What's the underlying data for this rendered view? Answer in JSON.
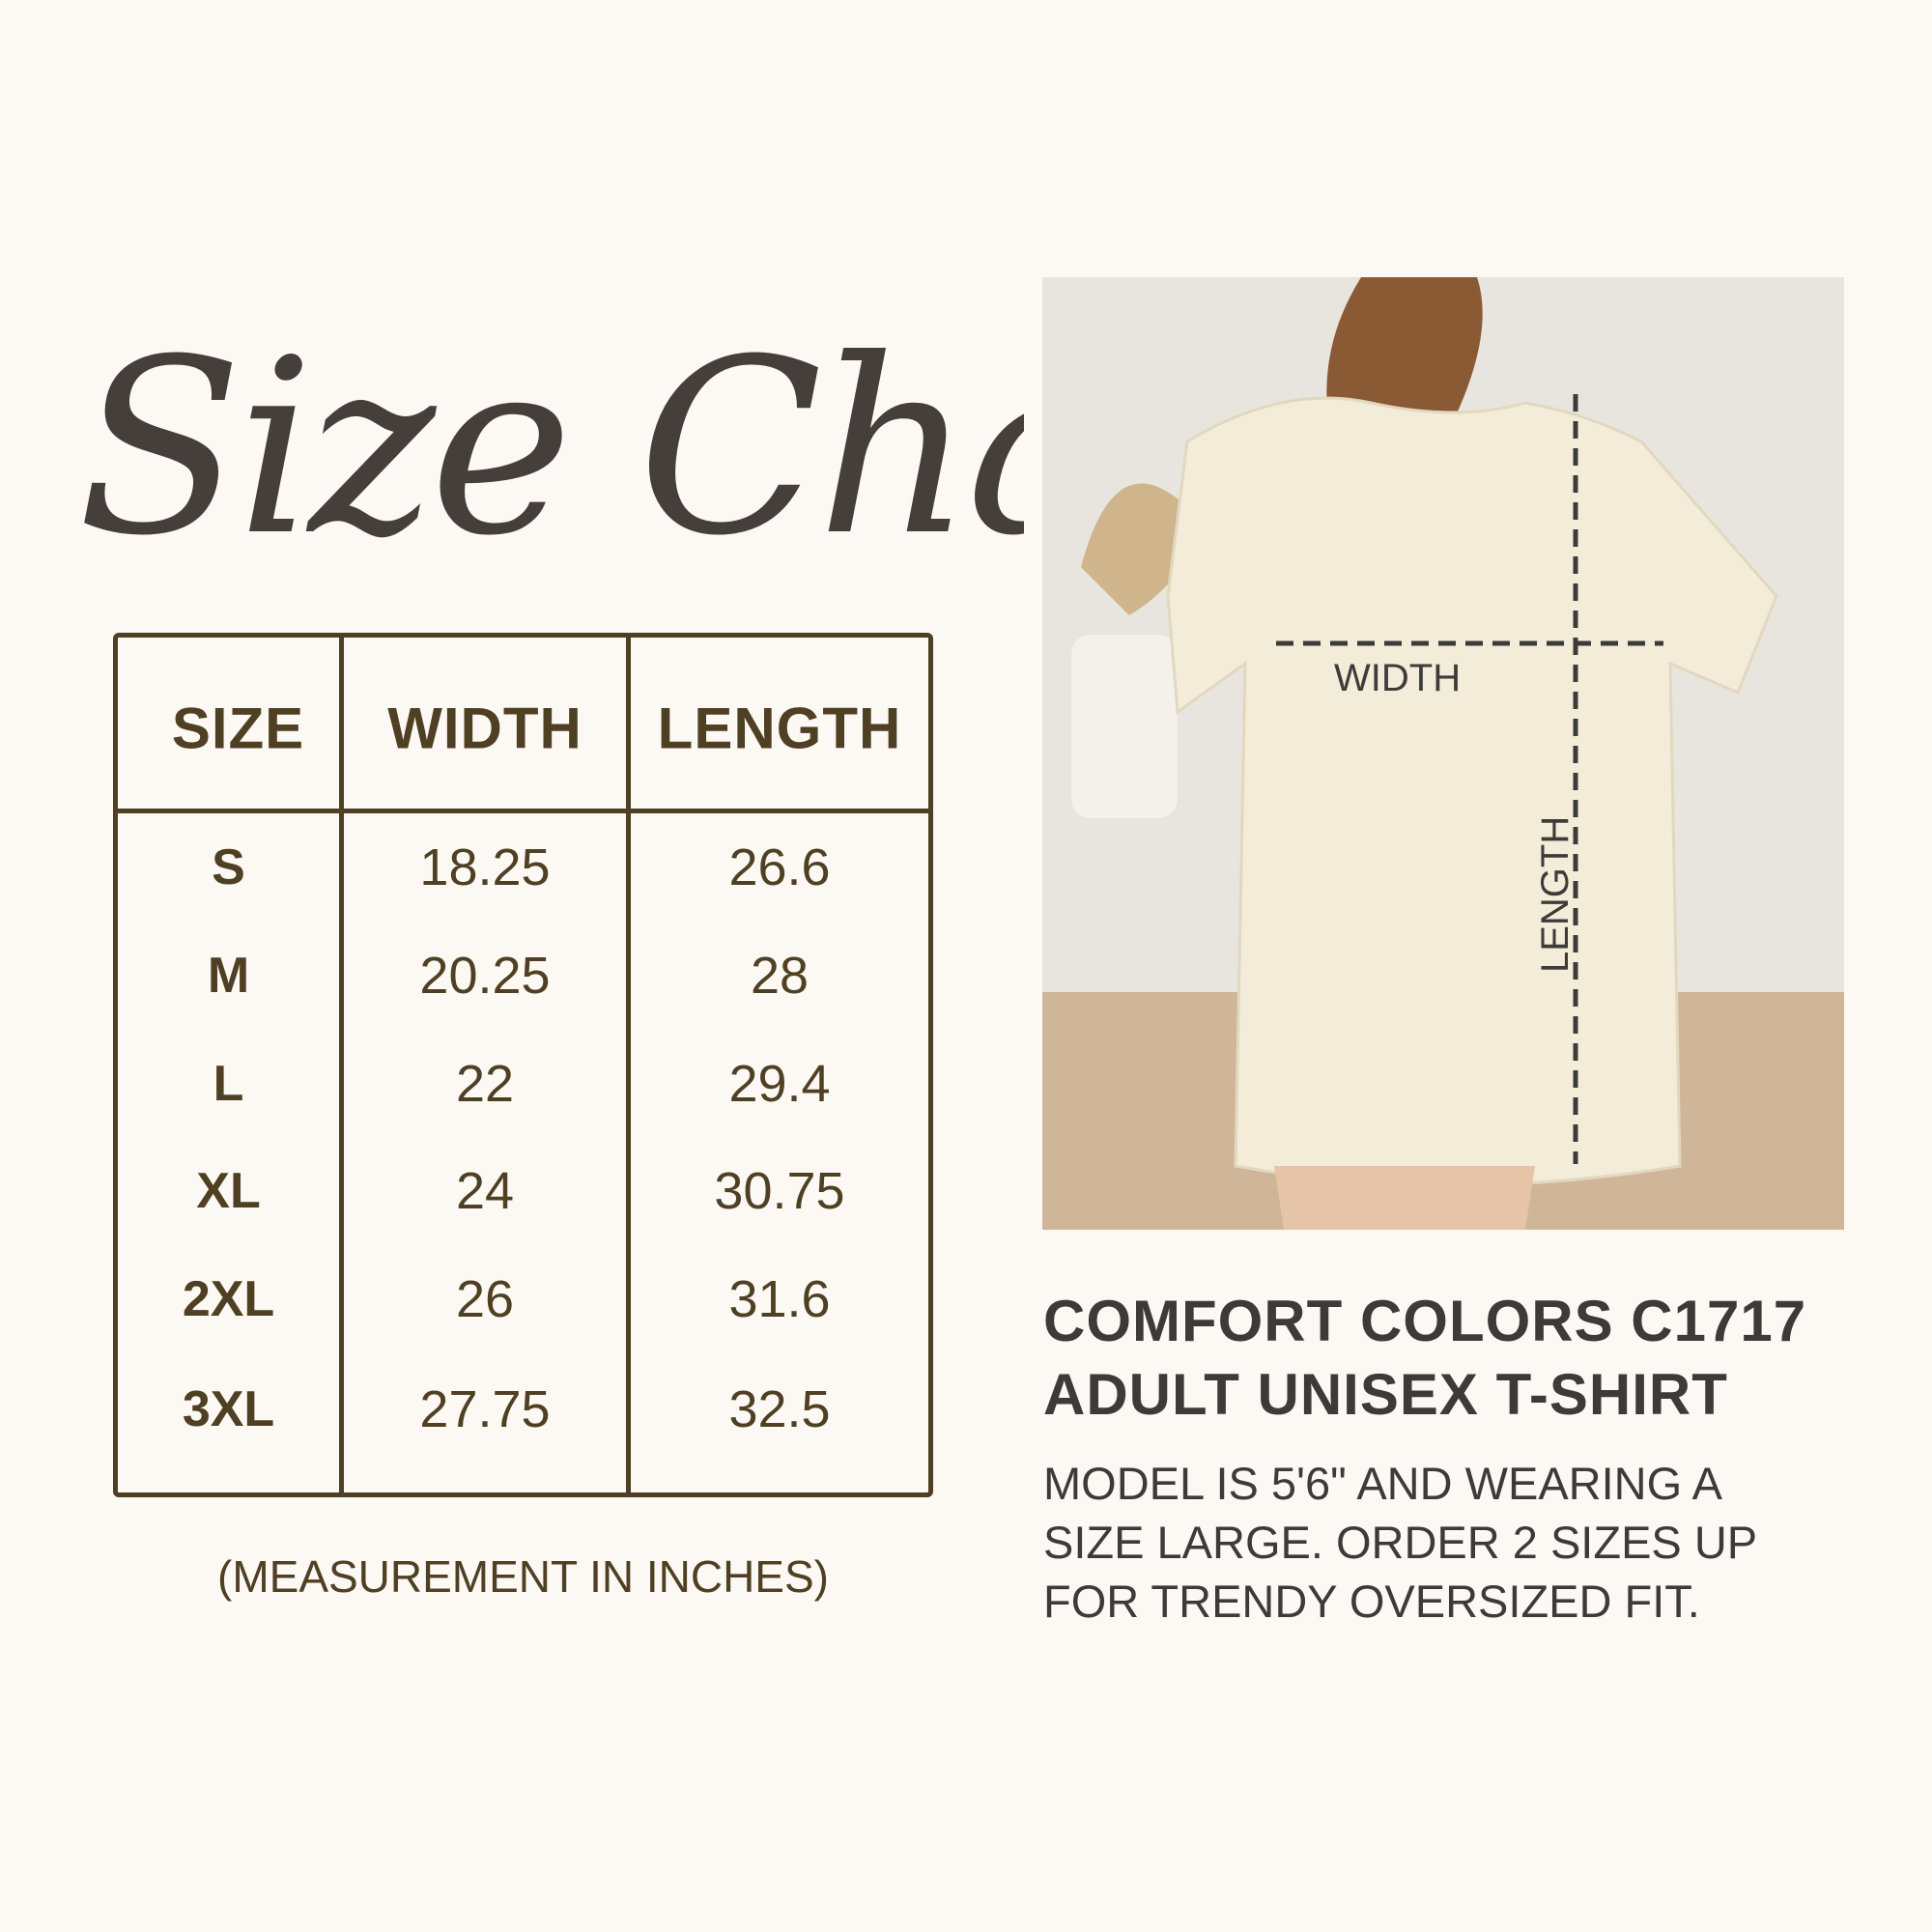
{
  "title": "Size Chart",
  "table": {
    "headers": [
      "SIZE",
      "WIDTH",
      "LENGTH"
    ],
    "rows": [
      {
        "size": "S",
        "width": "18.25",
        "length": "26.6"
      },
      {
        "size": "M",
        "width": "20.25",
        "length": "28"
      },
      {
        "size": "L",
        "width": "22",
        "length": "29.4"
      },
      {
        "size": "XL",
        "width": "24",
        "length": "30.75"
      },
      {
        "size": "2XL",
        "width": "26",
        "length": "31.6"
      },
      {
        "size": "3XL",
        "width": "27.75",
        "length": "32.5"
      }
    ],
    "note": "(MEASUREMENT IN INCHES)"
  },
  "photo": {
    "width_label": "WIDTH",
    "length_label": "LENGTH"
  },
  "product": {
    "title_line1": "COMFORT COLORS C1717",
    "title_line2": "ADULT UNISEX T-SHIRT",
    "desc_line1": "MODEL IS 5'6\" AND WEARING A",
    "desc_line2": "SIZE LARGE. ORDER 2 SIZES UP",
    "desc_line3": "FOR TRENDY OVERSIZED FIT."
  },
  "colors": {
    "background": "#fcf9f4",
    "table": "#4f4023",
    "text": "#3f3a38"
  }
}
